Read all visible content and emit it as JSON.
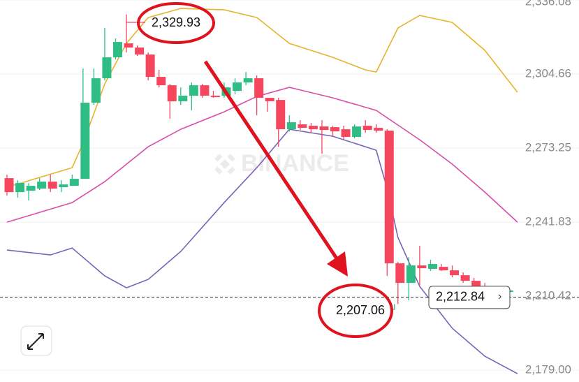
{
  "chart_data": {
    "type": "candlestick",
    "up_color": "#2ebd85",
    "down_color": "#f6465d",
    "open": [
      2260.49,
      2254.57,
      2255.16,
      2256.05,
      2259.01,
      2256.64,
      2257.24,
      2260.2,
      2292.5,
      2302.87,
      2311.75,
      2317.68,
      2315.9,
      2312.94,
      2303.46,
      2299.9,
      2293.09,
      2295.46,
      2299.9,
      2295.46,
      2295.46,
      2297.53,
      2301.09,
      2302.87,
      2294.57,
      2293.68,
      2281.24,
      2283.31,
      2282.72,
      2282.42,
      2282.12,
      2281.24,
      2277.98,
      2282.72,
      2281.83,
      2280.64,
      2224.35,
      2216.05,
      2223.46,
      2221.98,
      2222.86,
      2221.38,
      2219.31,
      2216.94,
      2214.57,
      2213.09,
      2212.2
    ],
    "high": [
      2261.98,
      2259.61,
      2258.42,
      2260.49,
      2261.98,
      2259.61,
      2261.98,
      2307.01,
      2307.01,
      2324.2,
      2319.75,
      2329.93,
      2316.79,
      2313.83,
      2306.42,
      2300.5,
      2299.01,
      2301.09,
      2300.5,
      2297.53,
      2301.09,
      2302.87,
      2305.53,
      2304.05,
      2294.57,
      2294.57,
      2287.16,
      2285.09,
      2283.9,
      2285.09,
      2282.72,
      2282.72,
      2283.31,
      2285.09,
      2283.31,
      2281.24,
      2224.94,
      2227.01,
      2231.75,
      2225.83,
      2224.05,
      2223.46,
      2220.49,
      2218.12,
      2216.05,
      2213.98,
      2213.98
    ],
    "low": [
      2253.09,
      2252.2,
      2251.01,
      2255.46,
      2254.57,
      2254.57,
      2257.24,
      2260.2,
      2291.61,
      2301.98,
      2310.87,
      2313.83,
      2312.35,
      2301.98,
      2299.01,
      2285.68,
      2291.61,
      2289.24,
      2294.57,
      2294.57,
      2294.57,
      2296.05,
      2299.9,
      2287.16,
      2288.64,
      2273.83,
      2280.35,
      2280.94,
      2279.75,
      2270.87,
      2278.27,
      2276.79,
      2277.38,
      2279.75,
      2279.75,
      2219.01,
      2207.06,
      2208.64,
      2215.16,
      2221.09,
      2221.09,
      2218.42,
      2216.05,
      2213.98,
      2212.2,
      2211.61,
      2211.61
    ],
    "close": [
      2254.57,
      2258.42,
      2257.24,
      2259.01,
      2256.05,
      2257.83,
      2260.2,
      2292.5,
      2302.87,
      2311.75,
      2318.27,
      2315.9,
      2312.94,
      2303.46,
      2299.9,
      2293.09,
      2295.46,
      2299.9,
      2295.46,
      2294.87,
      2299.01,
      2301.09,
      2302.87,
      2294.57,
      2293.09,
      2281.24,
      2284.2,
      2281.83,
      2281.24,
      2280.94,
      2280.35,
      2277.98,
      2282.42,
      2280.94,
      2280.64,
      2224.35,
      2216.05,
      2223.46,
      2222.27,
      2224.05,
      2221.38,
      2219.31,
      2216.94,
      2214.57,
      2213.09,
      2212.2,
      2212.84
    ],
    "indicators": [
      {
        "color": "#e5b52d",
        "x": [
          0,
          6,
          7,
          9,
          11,
          13,
          16,
          20,
          23,
          26,
          30,
          33,
          34,
          36,
          38,
          41,
          44,
          47
        ],
        "values": [
          2256.64,
          2264.94,
          2275.31,
          2300.5,
          2317.68,
          2328.64,
          2332.5,
          2331.9,
          2328.64,
          2317.68,
          2311.75,
          2306.42,
          2305.53,
          2324.2,
          2329.53,
          2326.57,
          2314.72,
          2296.94
        ]
      },
      {
        "color": "#d94fa8",
        "x": [
          0,
          6,
          9,
          13,
          16,
          20,
          23,
          26,
          30,
          34,
          38,
          41,
          44,
          47
        ],
        "values": [
          2241.83,
          2250.12,
          2259.01,
          2273.83,
          2281.24,
          2288.64,
          2295.16,
          2299.01,
          2294.57,
          2289.24,
          2276.79,
          2266.42,
          2254.57,
          2241.83
        ]
      },
      {
        "color": "#7b62b8",
        "x": [
          0,
          4,
          6,
          9,
          11,
          13,
          16,
          20,
          23,
          26,
          30,
          34,
          35,
          36,
          38,
          41,
          44,
          47
        ],
        "values": [
          2229.98,
          2227.9,
          2230.86,
          2219.01,
          2213.98,
          2217.53,
          2229.38,
          2250.12,
          2264.94,
          2281.24,
          2278.27,
          2272.35,
          2256.05,
          2235.31,
          2214.57,
          2196.79,
          2184.94,
          2177.53
        ]
      }
    ],
    "ylim": [
      2174,
      2336.08
    ],
    "yticks": [
      {
        "value": 2336.08,
        "label": "2,336.08"
      },
      {
        "value": 2304.66,
        "label": "2,304.66"
      },
      {
        "value": 2273.25,
        "label": "2,273.25"
      },
      {
        "value": 2241.83,
        "label": "2,241.83"
      },
      {
        "value": 2210.42,
        "label": "2,210.42"
      },
      {
        "value": 2179.0,
        "label": "2,179.00"
      }
    ],
    "current_price": {
      "value": 2212.84,
      "label": "2,212.84"
    },
    "high_annotation": {
      "value": 2329.93,
      "label": "2,329.93"
    },
    "low_annotation": {
      "value": 2207.06,
      "label": "2,207.06"
    },
    "watermark": "BINANCE"
  }
}
